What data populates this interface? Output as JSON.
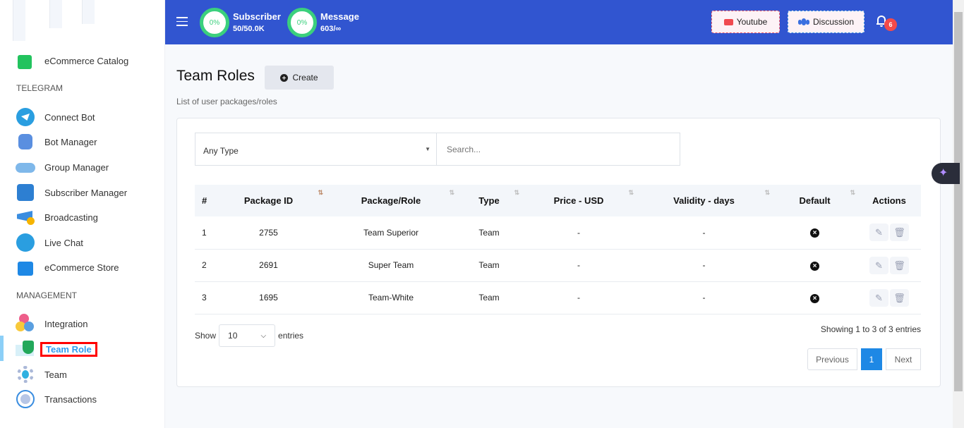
{
  "sidebar": {
    "items_top": [
      {
        "label": "eCommerce Catalog",
        "icon": "shopping-bag-icon"
      }
    ],
    "telegram_heading": "TELEGRAM",
    "telegram": [
      {
        "label": "Connect Bot",
        "icon": "telegram-icon"
      },
      {
        "label": "Bot Manager",
        "icon": "robot-icon"
      },
      {
        "label": "Group Manager",
        "icon": "group-icon"
      },
      {
        "label": "Subscriber Manager",
        "icon": "phone-icon"
      },
      {
        "label": "Broadcasting",
        "icon": "megaphone-icon"
      },
      {
        "label": "Live Chat",
        "icon": "chat-icon"
      },
      {
        "label": "eCommerce Store",
        "icon": "store-bag-icon"
      }
    ],
    "management_heading": "MANAGEMENT",
    "management": [
      {
        "label": "Integration",
        "icon": "integration-icon"
      },
      {
        "label": "Team Role",
        "icon": "shield-user-icon",
        "active": true
      },
      {
        "label": "Team",
        "icon": "team-gear-icon"
      },
      {
        "label": "Transactions",
        "icon": "clock-icon"
      }
    ]
  },
  "header": {
    "subscriber": {
      "percent": "0%",
      "title": "Subscriber",
      "value": "50/50.0K"
    },
    "message": {
      "percent": "0%",
      "title": "Message",
      "value": "603/∞"
    },
    "youtube_label": "Youtube",
    "discussion_label": "Discussion",
    "notification_count": "6"
  },
  "page": {
    "title": "Team Roles",
    "create_label": "Create",
    "subtitle": "List of user packages/roles"
  },
  "filters": {
    "type_value": "Any Type",
    "search_placeholder": "Search..."
  },
  "table": {
    "columns": [
      "#",
      "Package ID",
      "Package/Role",
      "Type",
      "Price - USD",
      "Validity - days",
      "Default",
      "Actions"
    ],
    "rows": [
      {
        "num": "1",
        "id": "2755",
        "role": "Team Superior",
        "type": "Team",
        "price": "-",
        "validity": "-",
        "default": false
      },
      {
        "num": "2",
        "id": "2691",
        "role": "Super Team",
        "type": "Team",
        "price": "-",
        "validity": "-",
        "default": false
      },
      {
        "num": "3",
        "id": "1695",
        "role": "Team-White",
        "type": "Team",
        "price": "-",
        "validity": "-",
        "default": false
      }
    ]
  },
  "footer": {
    "show_label": "Show",
    "entries_value": "10",
    "entries_label": "entries",
    "info": "Showing 1 to 3 of 3 entries",
    "previous": "Previous",
    "page": "1",
    "next": "Next"
  },
  "colors": {
    "header": "#3155d0",
    "accent": "#1e88e5",
    "active_link": "#2f9bf0",
    "progress": "#3bd07d",
    "badge": "#f44a4a"
  }
}
